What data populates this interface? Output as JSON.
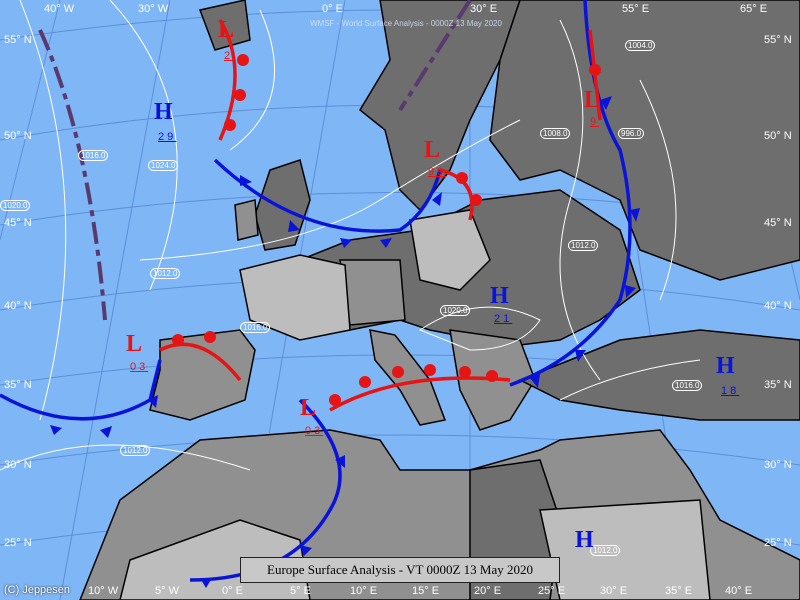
{
  "caption": "Europe Surface Analysis - VT 0000Z 13 May 2020",
  "watermark": "WMSF - World Surface Analysis - 0000Z 13 May 2020",
  "copyright": "(C) Jeppesen",
  "colors": {
    "sea": "#7fb6f5",
    "land_dark": "#6e6e6e",
    "land_mid": "#909090",
    "land_light": "#bdbdbd",
    "high": "#0a14d8",
    "low": "#e61414",
    "cold_front": "#0a14d8",
    "warm_front": "#e61414",
    "trough": "#5a3a6e"
  },
  "grid_labels": {
    "top": [
      "40° W",
      "30° W",
      "0° E",
      "30° E",
      "55° E",
      "65° E"
    ],
    "left": [
      "55° N",
      "50° N",
      "45° N",
      "40° N",
      "35° N",
      "30° N",
      "25° N"
    ],
    "right": [
      "55° N",
      "50° N",
      "45° N",
      "40° N",
      "35° N",
      "30° N",
      "25° N"
    ],
    "bottom": [
      "10° W",
      "5° W",
      "0° E",
      "5° E",
      "10° E",
      "15° E",
      "20° E",
      "25° E",
      "30° E",
      "35° E",
      "40° E"
    ]
  },
  "systems": [
    {
      "type": "L",
      "value": "2",
      "name": "low-iceland"
    },
    {
      "type": "H",
      "value": "29",
      "name": "high-atlantic"
    },
    {
      "type": "L",
      "value": "99",
      "name": "low-baltic"
    },
    {
      "type": "L",
      "value": "9",
      "name": "low-russia"
    },
    {
      "type": "H",
      "value": "21",
      "name": "high-carpathian"
    },
    {
      "type": "L",
      "value": "03",
      "name": "low-iberia"
    },
    {
      "type": "L",
      "value": "03",
      "name": "low-algeria"
    },
    {
      "type": "H",
      "value": "18",
      "name": "high-turkey"
    },
    {
      "type": "H",
      "value": "",
      "name": "high-sahara"
    }
  ],
  "isobar_labels": [
    "1016.0",
    "1024.0",
    "1020.0",
    "1012.0",
    "1008.0",
    "1004.0",
    "996.0",
    "1012.0",
    "1016.0",
    "1020.0",
    "1012.0",
    "1016.0",
    "1012.0"
  ]
}
